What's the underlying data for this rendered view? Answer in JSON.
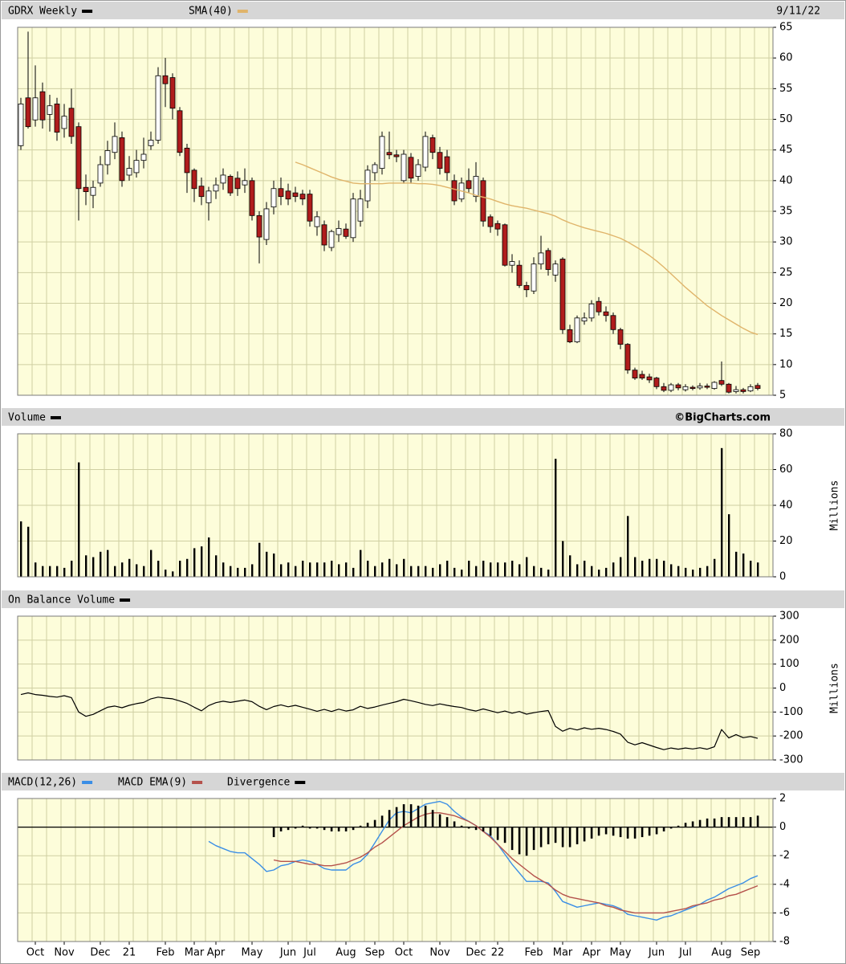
{
  "chart_data": [
    {
      "type": "candlestick",
      "title": "GDRX Weekly",
      "date": "9/11/22",
      "color": "#000000",
      "up_color": "#ffffff",
      "down_color": "#b01c1c",
      "open": [
        45.7,
        53.5,
        49.9,
        54.5,
        50.8,
        52.5,
        48.5,
        51.8,
        48.8,
        38.9,
        37.6,
        39.6,
        42.6,
        44.6,
        47,
        40.9,
        41.3,
        43.3,
        45.7,
        46.6,
        57.1,
        56.8,
        51.4,
        45.3,
        41.7,
        39.1,
        36.4,
        38.3,
        39.6,
        40.7,
        40.4,
        39.3,
        40,
        34.3,
        30.4,
        35.7,
        38.7,
        38.3,
        38,
        37.8,
        37.8,
        32.5,
        32.8,
        29.1,
        31.2,
        32.1,
        30.7,
        33.4,
        36.7,
        41.3,
        42,
        44.6,
        44.2,
        40,
        43.8,
        40.7,
        42.2,
        47,
        44.6,
        43.9,
        40,
        37,
        40,
        37.4,
        40,
        34.1,
        33,
        32.8,
        26.2,
        26.2,
        22.9,
        22,
        26.4,
        28.6,
        24.6,
        27.2,
        15.7,
        13.7,
        17.1,
        17.6,
        20.3,
        18.6,
        18,
        15.7,
        13.3,
        9.1,
        8.4,
        8,
        7.8,
        6.4,
        5.8,
        6.7,
        5.9,
        6.3,
        6.2,
        6.5,
        6.1,
        7.4,
        6.8,
        5.6,
        5.9,
        5.7,
        6.6
      ],
      "high": [
        53.5,
        64.3,
        58.8,
        56,
        54,
        53.5,
        52.5,
        55,
        49.5,
        41,
        40,
        44,
        46.5,
        49.5,
        48,
        44,
        45,
        47,
        48,
        58.5,
        60,
        57.5,
        52,
        46,
        42,
        40.5,
        39,
        40.5,
        42,
        41,
        41.5,
        42,
        40.5,
        35,
        36.5,
        40,
        40.5,
        39.5,
        39,
        38.5,
        38.5,
        35,
        33.5,
        32,
        33.5,
        33,
        38,
        38.5,
        42.5,
        43,
        48,
        48,
        45,
        45,
        44.5,
        43.5,
        48,
        47.5,
        45.5,
        45,
        41,
        40.5,
        42,
        43,
        40.5,
        34.5,
        33.5,
        33,
        28,
        27,
        23.5,
        27.5,
        31,
        29,
        27,
        27.5,
        16.5,
        18,
        18.5,
        20.5,
        21,
        19.5,
        18.5,
        16,
        13.5,
        9.5,
        9,
        8.5,
        8,
        7,
        7,
        7,
        6.8,
        6.6,
        7,
        6.9,
        7.3,
        10.5,
        7,
        6.5,
        6.2,
        6.8,
        7
      ],
      "low": [
        45,
        48.5,
        48.8,
        48.5,
        48,
        46.5,
        47,
        46,
        33.5,
        36,
        35.5,
        39,
        41,
        43.5,
        39,
        40,
        40.5,
        42,
        45,
        46,
        52,
        50,
        44,
        38,
        36.5,
        36,
        33.5,
        37,
        38.5,
        37.5,
        37.5,
        38,
        33.5,
        26.5,
        29.5,
        34.5,
        36,
        36,
        36.5,
        36,
        32.5,
        31,
        28.5,
        28.5,
        30,
        30.5,
        30,
        32.5,
        35.5,
        40,
        41,
        43.5,
        43,
        39.5,
        39.5,
        40,
        41.5,
        43.5,
        41,
        40,
        36,
        36.5,
        38,
        36.5,
        32.5,
        31.5,
        31,
        26,
        25,
        22.5,
        21,
        21.5,
        25.5,
        24.5,
        23.5,
        15,
        13.5,
        13.5,
        16.5,
        17,
        18,
        17,
        15,
        12.5,
        8.5,
        7.5,
        7.5,
        7,
        6,
        5.5,
        5.5,
        5.8,
        5.6,
        5.8,
        5.9,
        6,
        5.9,
        6.5,
        5.3,
        5.3,
        5.3,
        5.5,
        5.8
      ],
      "close": [
        52.5,
        48.8,
        53.5,
        49.9,
        52.2,
        47.9,
        50.5,
        47.2,
        38.7,
        38.2,
        38.9,
        42.6,
        44.9,
        47.2,
        40,
        42,
        43.3,
        44.3,
        46.6,
        57.1,
        55.8,
        51.8,
        44.6,
        41.3,
        38.7,
        37.4,
        38.3,
        39.3,
        40.9,
        38,
        38.7,
        40,
        34.3,
        30.8,
        35.4,
        38.7,
        37.4,
        37,
        37.4,
        37,
        33.4,
        34.1,
        29.5,
        31.7,
        32.2,
        30.9,
        37,
        37,
        41.7,
        42.6,
        47.2,
        44.2,
        43.9,
        44.3,
        40.4,
        42.6,
        47.2,
        44.6,
        42,
        41.3,
        36.7,
        39.6,
        38.7,
        40.7,
        33.4,
        32.5,
        32.1,
        26.2,
        26.8,
        22.9,
        22.2,
        26.4,
        28.2,
        25.5,
        26.4,
        15.7,
        13.7,
        17.6,
        17.6,
        19.9,
        18.6,
        18,
        15.7,
        13.3,
        9.1,
        7.8,
        7.8,
        7.5,
        6.4,
        5.8,
        6.7,
        6.2,
        6.4,
        6.1,
        6.5,
        6.3,
        7.1,
        6.8,
        5.5,
        5.9,
        5.6,
        6.4,
        6.1
      ],
      "overlay": {
        "name": "SMA(40)",
        "color": "#e0b46a",
        "values": [
          null,
          null,
          null,
          null,
          null,
          null,
          null,
          null,
          null,
          null,
          null,
          null,
          null,
          null,
          null,
          null,
          null,
          null,
          null,
          null,
          null,
          null,
          null,
          null,
          null,
          null,
          null,
          null,
          null,
          null,
          null,
          null,
          null,
          null,
          null,
          null,
          null,
          null,
          43.0,
          42.6,
          42.1,
          41.6,
          41.1,
          40.6,
          40.2,
          39.9,
          39.6,
          39.5,
          39.5,
          39.5,
          39.5,
          39.6,
          39.6,
          39.6,
          39.6,
          39.5,
          39.5,
          39.4,
          39.2,
          38.9,
          38.6,
          38.3,
          38.0,
          37.6,
          37.3,
          37.0,
          36.6,
          36.2,
          35.9,
          35.7,
          35.5,
          35.2,
          34.9,
          34.6,
          34.2,
          33.6,
          33.1,
          32.7,
          32.3,
          32.0,
          31.7,
          31.4,
          31.0,
          30.6,
          30.0,
          29.3,
          28.6,
          27.8,
          26.9,
          25.9,
          24.8,
          23.7,
          22.6,
          21.6,
          20.6,
          19.6,
          18.8,
          18.0,
          17.3,
          16.6,
          15.9,
          15.3,
          14.9
        ]
      },
      "ylim": [
        5,
        65
      ],
      "yticks": [
        5,
        10,
        15,
        20,
        25,
        30,
        35,
        40,
        45,
        50,
        55,
        60,
        65
      ],
      "grid": true
    },
    {
      "type": "bar",
      "title": "Volume",
      "credit": "©BigCharts.com",
      "ylabel": "Millions",
      "color": "#000000",
      "values": [
        31,
        28,
        8,
        6,
        6,
        6,
        5,
        9,
        64,
        12,
        11,
        14,
        15,
        6,
        8,
        10,
        7,
        6,
        15,
        9,
        4,
        3,
        9,
        10,
        16,
        17,
        22,
        12,
        8,
        6,
        5,
        5,
        7,
        19,
        14,
        13,
        7,
        8,
        6,
        9,
        8,
        8,
        8,
        9,
        7,
        8,
        5,
        15,
        9,
        6,
        8,
        10,
        7,
        10,
        6,
        6,
        6,
        5,
        7,
        9,
        5,
        4,
        9,
        6,
        9,
        8,
        8,
        8,
        9,
        7,
        11,
        6,
        5,
        4,
        66,
        20,
        12,
        7,
        9,
        6,
        4,
        5,
        8,
        11,
        34,
        11,
        9,
        10,
        10,
        9,
        7,
        6,
        5,
        4,
        5,
        6,
        10,
        72,
        35,
        14,
        13,
        9,
        8
      ],
      "ylim": [
        0,
        80
      ],
      "yticks": [
        0,
        20,
        40,
        60,
        80
      ],
      "grid": true
    },
    {
      "type": "line",
      "title": "On Balance Volume",
      "ylabel": "Millions",
      "color": "#000000",
      "values": [
        -27,
        -20,
        -27,
        -30,
        -35,
        -38,
        -32,
        -40,
        -100,
        -118,
        -110,
        -95,
        -80,
        -75,
        -82,
        -72,
        -65,
        -60,
        -45,
        -38,
        -42,
        -45,
        -54,
        -64,
        -80,
        -95,
        -73,
        -61,
        -55,
        -60,
        -55,
        -50,
        -57,
        -76,
        -90,
        -77,
        -70,
        -78,
        -72,
        -80,
        -88,
        -97,
        -89,
        -98,
        -88,
        -96,
        -91,
        -76,
        -85,
        -79,
        -71,
        -64,
        -57,
        -47,
        -53,
        -60,
        -68,
        -73,
        -66,
        -72,
        -77,
        -81,
        -90,
        -96,
        -87,
        -95,
        -103,
        -96,
        -105,
        -98,
        -109,
        -103,
        -98,
        -94,
        -160,
        -180,
        -168,
        -175,
        -166,
        -172,
        -168,
        -173,
        -181,
        -192,
        -226,
        -237,
        -228,
        -238,
        -248,
        -257,
        -250,
        -255,
        -250,
        -254,
        -249,
        -255,
        -245,
        -173,
        -208,
        -194,
        -207,
        -202,
        -210
      ],
      "ylim": [
        -300,
        300
      ],
      "yticks": [
        -300,
        -200,
        -100,
        0,
        100,
        200,
        300
      ],
      "grid": true
    },
    {
      "type": "macd",
      "categories": [
        null,
        null,
        "Oct",
        null,
        null,
        null,
        "Nov",
        null,
        null,
        null,
        null,
        "Dec",
        null,
        null,
        null,
        "21",
        null,
        null,
        null,
        null,
        "Feb",
        null,
        null,
        null,
        "Mar",
        null,
        null,
        "Apr",
        null,
        null,
        null,
        null,
        "May",
        null,
        null,
        null,
        null,
        "Jun",
        null,
        null,
        "Jul",
        null,
        null,
        null,
        null,
        "Aug",
        null,
        null,
        null,
        "Sep",
        null,
        null,
        null,
        "Oct",
        null,
        null,
        null,
        null,
        "Nov",
        null,
        null,
        null,
        null,
        "Dec",
        null,
        null,
        "22",
        null,
        null,
        null,
        null,
        "Feb",
        null,
        null,
        null,
        "Mar",
        null,
        null,
        null,
        "Apr",
        null,
        null,
        null,
        "May",
        null,
        null,
        null,
        null,
        "Jun",
        null,
        null,
        null,
        "Jul",
        null,
        null,
        null,
        null,
        "Aug",
        null,
        null,
        null,
        "Sep",
        null
      ],
      "series": [
        {
          "name": "MACD(12,26)",
          "color": "#3a8ee6",
          "style": "line",
          "values": [
            null,
            null,
            null,
            null,
            null,
            null,
            null,
            null,
            null,
            null,
            null,
            null,
            null,
            null,
            null,
            null,
            null,
            null,
            null,
            null,
            null,
            null,
            null,
            null,
            null,
            null,
            -1.0,
            -1.3,
            -1.5,
            -1.7,
            -1.8,
            -1.8,
            -2.2,
            -2.6,
            -3.1,
            -3.0,
            -2.7,
            -2.6,
            -2.4,
            -2.3,
            -2.4,
            -2.6,
            -2.9,
            -3.0,
            -3.0,
            -3.0,
            -2.6,
            -2.4,
            -1.9,
            -1.1,
            -0.3,
            0.5,
            1.0,
            1.1,
            1.0,
            1.3,
            1.6,
            1.7,
            1.8,
            1.6,
            1.1,
            0.7,
            0.4,
            0.1,
            -0.3,
            -0.6,
            -1.2,
            -1.9,
            -2.6,
            -3.2,
            -3.8,
            -3.8,
            -3.8,
            -3.9,
            -4.5,
            -5.2,
            -5.4,
            -5.6,
            -5.5,
            -5.4,
            -5.3,
            -5.4,
            -5.5,
            -5.7,
            -6.1,
            -6.2,
            -6.3,
            -6.4,
            -6.5,
            -6.3,
            -6.2,
            -6.0,
            -5.8,
            -5.6,
            -5.4,
            -5.1,
            -4.9,
            -4.6,
            -4.3,
            -4.1,
            -3.9,
            -3.6,
            -3.4
          ]
        },
        {
          "name": "MACD EMA(9)",
          "color": "#b5524c",
          "style": "line",
          "values": [
            null,
            null,
            null,
            null,
            null,
            null,
            null,
            null,
            null,
            null,
            null,
            null,
            null,
            null,
            null,
            null,
            null,
            null,
            null,
            null,
            null,
            null,
            null,
            null,
            null,
            null,
            null,
            null,
            null,
            null,
            null,
            null,
            null,
            null,
            null,
            -2.3,
            -2.4,
            -2.4,
            -2.4,
            -2.5,
            -2.6,
            -2.6,
            -2.7,
            -2.7,
            -2.6,
            -2.5,
            -2.3,
            -2.1,
            -1.8,
            -1.4,
            -1.1,
            -0.7,
            -0.3,
            0.1,
            0.4,
            0.7,
            0.9,
            1.0,
            1.0,
            0.9,
            0.8,
            0.6,
            0.4,
            0.1,
            -0.3,
            -0.7,
            -1.2,
            -1.7,
            -2.2,
            -2.6,
            -3.0,
            -3.4,
            -3.7,
            -4.0,
            -4.4,
            -4.7,
            -4.9,
            -5.0,
            -5.1,
            -5.2,
            -5.3,
            -5.5,
            -5.6,
            -5.8,
            -5.9,
            -6.0,
            -6.0,
            -6.0,
            -6.0,
            -6.0,
            -5.9,
            -5.8,
            -5.7,
            -5.5,
            -5.4,
            -5.3,
            -5.1,
            -5.0,
            -4.8,
            -4.7,
            -4.5,
            -4.3,
            -4.1
          ]
        },
        {
          "name": "Divergence",
          "color": "#000000",
          "style": "bar",
          "values": [
            null,
            null,
            null,
            null,
            null,
            null,
            null,
            null,
            null,
            null,
            null,
            null,
            null,
            null,
            null,
            null,
            null,
            null,
            null,
            null,
            null,
            null,
            null,
            null,
            null,
            null,
            null,
            null,
            null,
            null,
            null,
            null,
            null,
            null,
            null,
            -0.7,
            -0.3,
            -0.2,
            -0.1,
            0.1,
            -0.1,
            -0.1,
            -0.2,
            -0.3,
            -0.3,
            -0.3,
            -0.2,
            0.1,
            0.3,
            0.5,
            0.8,
            1.2,
            1.4,
            1.6,
            1.6,
            1.5,
            1.5,
            1.2,
            0.9,
            0.7,
            0.4,
            0.1,
            -0.1,
            -0.2,
            -0.3,
            -0.6,
            -0.9,
            -1.1,
            -1.6,
            -1.9,
            -2.0,
            -1.6,
            -1.4,
            -1.2,
            -1.1,
            -1.4,
            -1.4,
            -1.2,
            -1.0,
            -0.8,
            -0.6,
            -0.5,
            -0.6,
            -0.7,
            -0.8,
            -0.8,
            -0.7,
            -0.6,
            -0.5,
            -0.3,
            -0.1,
            0.1,
            0.3,
            0.4,
            0.5,
            0.6,
            0.6,
            0.7,
            0.7,
            0.7,
            0.7,
            0.7,
            0.8
          ]
        }
      ],
      "ylim": [
        -8,
        2
      ],
      "yticks": [
        -8,
        -6,
        -4,
        -2,
        0,
        2
      ],
      "grid": true
    }
  ]
}
